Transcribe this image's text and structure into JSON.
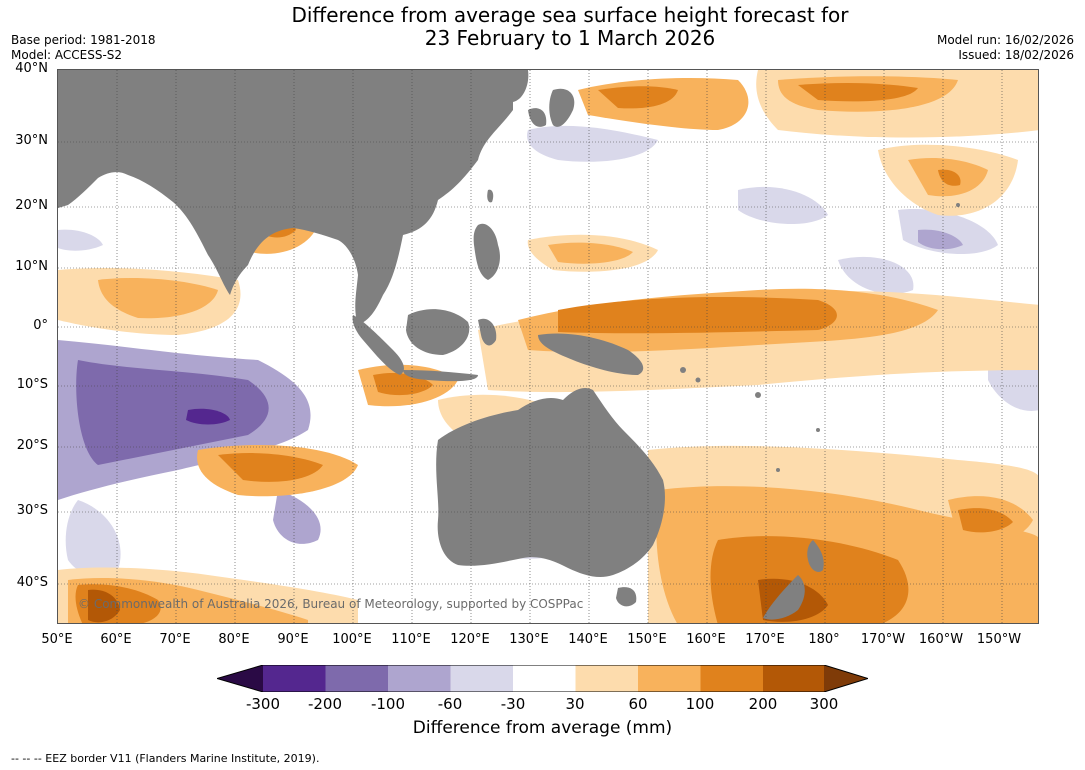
{
  "title": {
    "line1": "Difference from average sea surface height forecast for",
    "line2": "23 February to 1 March 2026"
  },
  "meta": {
    "base_period": "Base period: 1981-2018",
    "model": "Model: ACCESS-S2",
    "model_run": "Model run: 16/02/2026",
    "issued": "Issued: 18/02/2026"
  },
  "map": {
    "copyright": "© Commonwealth of Australia 2026, Bureau of Meteorology, supported by COSPPac",
    "lat_labels": [
      "40°N",
      "30°N",
      "20°N",
      "10°N",
      "0°",
      "10°S",
      "20°S",
      "30°S",
      "40°S"
    ],
    "lon_labels": [
      "50°E",
      "60°E",
      "70°E",
      "80°E",
      "90°E",
      "100°E",
      "110°E",
      "120°E",
      "130°E",
      "140°E",
      "150°E",
      "160°E",
      "170°E",
      "180°",
      "170°W",
      "160°W",
      "150°W"
    ]
  },
  "colorbar": {
    "title": "Difference from average (mm)",
    "ticks": [
      "-300",
      "-200",
      "-100",
      "-60",
      "-30",
      "30",
      "60",
      "100",
      "200",
      "300"
    ],
    "colors": [
      "#2a0a45",
      "#54278f",
      "#7e6aac",
      "#aea5cf",
      "#d9d8ea",
      "#ffffff",
      "#fddcad",
      "#f8b25c",
      "#e0821d",
      "#b35806",
      "#7f3b08"
    ]
  },
  "footnote": "--  --  -- EEZ border V11 (Flanders Marine Institute, 2019)."
}
